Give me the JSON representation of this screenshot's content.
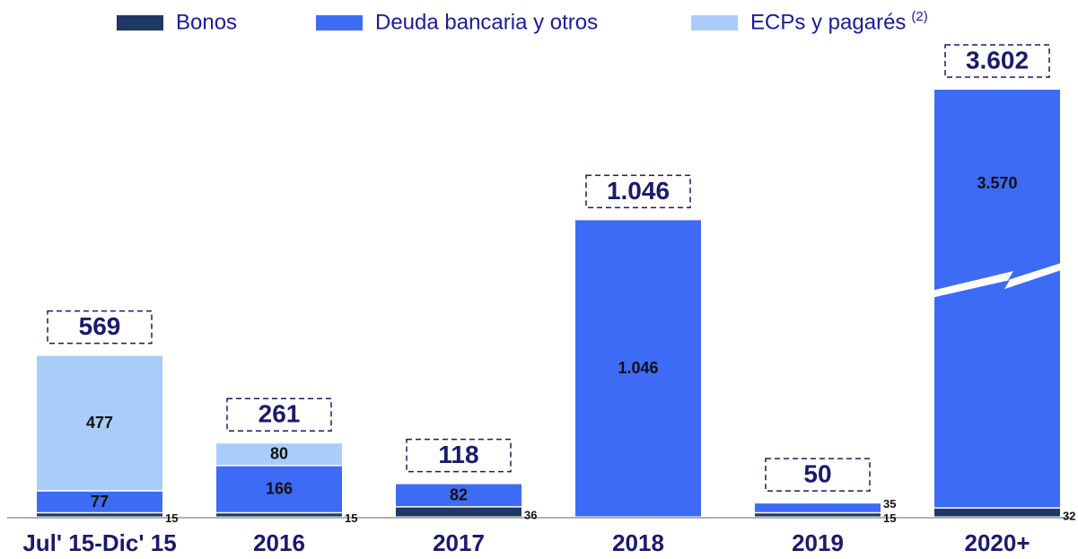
{
  "chart_data": {
    "type": "stacked_bar",
    "categories": [
      "Jul' 15-Dic' 15",
      "2016",
      "2017",
      "2018",
      "2019",
      "2020+"
    ],
    "series": [
      {
        "name": "Bonos",
        "color": "#1f3864",
        "values": [
          15,
          15,
          36,
          null,
          15,
          32
        ]
      },
      {
        "name": "Deuda bancaria y otros",
        "color": "#3d6bf5",
        "values": [
          77,
          166,
          82,
          1046,
          35,
          3570
        ],
        "value_labels": [
          "77",
          "166",
          "82",
          "1.046",
          "35",
          "3.570"
        ]
      },
      {
        "name": "ECPs y pagarés",
        "color": "#a9cdf8",
        "values": [
          477,
          80,
          null,
          null,
          null,
          null
        ]
      }
    ],
    "legend_footnote": "(2)",
    "totals": {
      "values": [
        569,
        261,
        118,
        1046,
        50,
        3602
      ],
      "value_labels": [
        "569",
        "261",
        "118",
        "1.046",
        "50",
        "3.602"
      ]
    },
    "axis_break": true
  }
}
